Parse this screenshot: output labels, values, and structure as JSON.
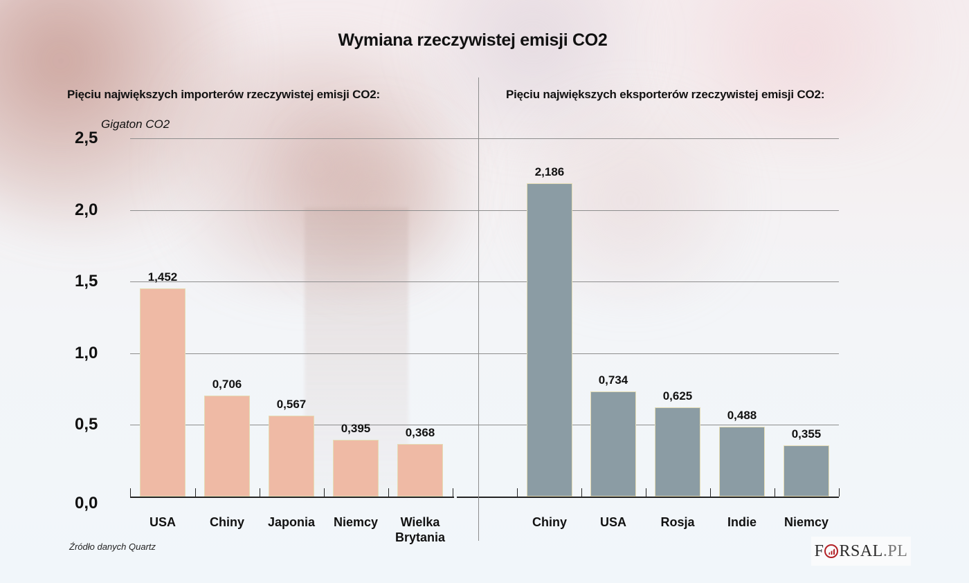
{
  "title": "Wymiana rzeczywistej emisji CO2",
  "left_panel": {
    "subtitle": "Pięciu największych importerów rzeczywistej emisji CO2:",
    "unit_label": "Gigaton CO2"
  },
  "right_panel": {
    "subtitle": "Pięciu największych eksporterów rzeczywistej emisji CO2:"
  },
  "y_axis": {
    "ticks": [
      "2,5",
      "2,0",
      "1,5",
      "1,0",
      "0,5",
      "0,0"
    ]
  },
  "importers": [
    {
      "label": "USA",
      "value_label": "1,452"
    },
    {
      "label": "Chiny",
      "value_label": "0,706"
    },
    {
      "label": "Japonia",
      "value_label": "0,567"
    },
    {
      "label": "Niemcy",
      "value_label": "0,395"
    },
    {
      "label": "Wielka Brytania",
      "value_label": "0,368"
    }
  ],
  "exporters": [
    {
      "label": "Chiny",
      "value_label": "2,186"
    },
    {
      "label": "USA",
      "value_label": "0,734"
    },
    {
      "label": "Rosja",
      "value_label": "0,625"
    },
    {
      "label": "Indie",
      "value_label": "0,488"
    },
    {
      "label": "Niemcy",
      "value_label": "0,355"
    }
  ],
  "source": "Źródło danych Quartz",
  "logo": {
    "prefix": "F",
    "suffix": "RSAL",
    "domain": ".PL"
  },
  "colors": {
    "importers_bar": "#efbaa5",
    "exporters_bar": "#8b9ca4",
    "bar_border": "#e4dcb4",
    "gridline": "#8d8d8d",
    "logo_accent": "#b32025"
  },
  "chart_data": [
    {
      "type": "bar",
      "title": "Pięciu największych importerów rzeczywistej emisji CO2:",
      "suptitle": "Wymiana rzeczywistej emisji CO2",
      "categories": [
        "USA",
        "Chiny",
        "Japonia",
        "Niemcy",
        "Wielka Brytania"
      ],
      "values": [
        1.452,
        0.706,
        0.567,
        0.395,
        0.368
      ],
      "xlabel": "",
      "ylabel": "Gigaton CO2",
      "ylim": [
        0,
        2.5
      ],
      "yticks": [
        0.0,
        0.5,
        1.0,
        1.5,
        2.0,
        2.5
      ],
      "grid": true,
      "color": "#efbaa5"
    },
    {
      "type": "bar",
      "title": "Pięciu największych eksporterów rzeczywistej emisji CO2:",
      "suptitle": "Wymiana rzeczywistej emisji CO2",
      "categories": [
        "Chiny",
        "USA",
        "Rosja",
        "Indie",
        "Niemcy"
      ],
      "values": [
        2.186,
        0.734,
        0.625,
        0.488,
        0.355
      ],
      "xlabel": "",
      "ylabel": "Gigaton CO2",
      "ylim": [
        0,
        2.5
      ],
      "yticks": [
        0.0,
        0.5,
        1.0,
        1.5,
        2.0,
        2.5
      ],
      "grid": true,
      "color": "#8b9ca4"
    }
  ]
}
